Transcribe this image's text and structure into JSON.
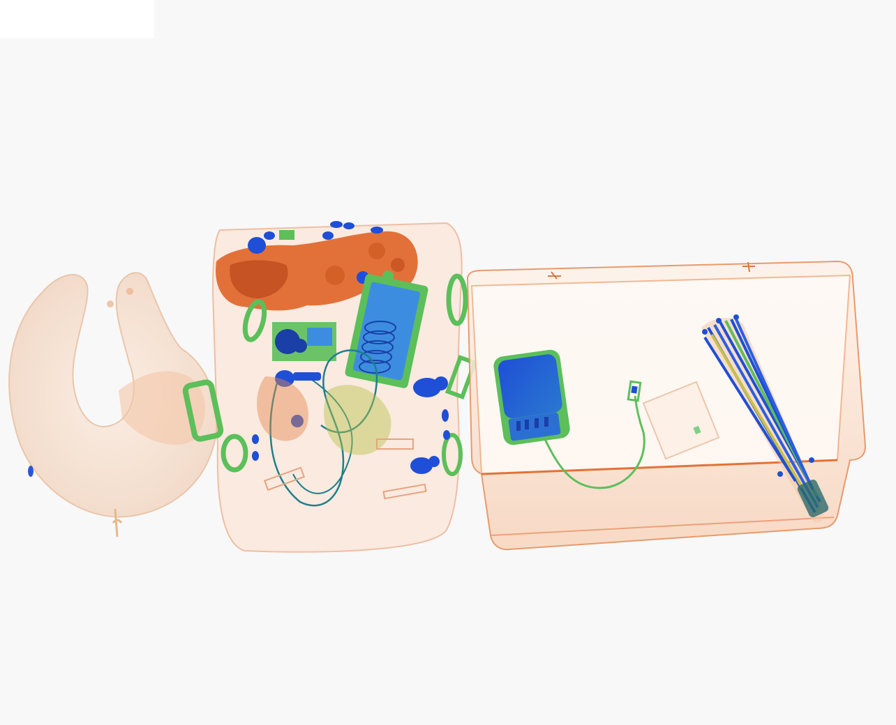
{
  "scene": {
    "kind": "xray-baggage-scan",
    "background": "#f8f8f8",
    "colors": {
      "organic": "#e0662a",
      "organic_light": "#f1b894",
      "mixed": "#5cbf5a",
      "metal": "#1f4fd6",
      "metal_light": "#3c8de0"
    },
    "objects": [
      "neck-pillow",
      "backpack",
      "plastic-tray",
      "power-bank",
      "usb-cable",
      "card",
      "umbrella"
    ]
  }
}
